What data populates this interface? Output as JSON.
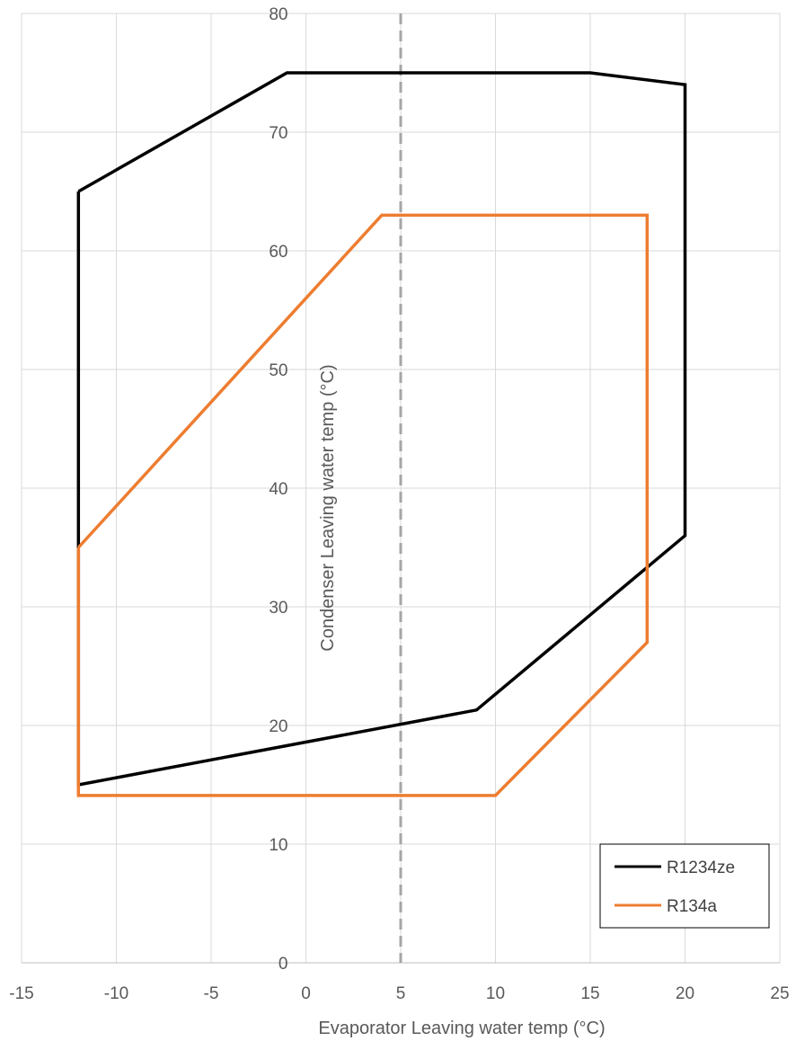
{
  "chart_data": {
    "type": "line",
    "xlabel": "Evaporator Leaving water temp (°C)",
    "ylabel": "Condenser Leaving water temp (°C)",
    "xlim": [
      -15,
      25
    ],
    "ylim": [
      0,
      80
    ],
    "x_ticks": [
      -15,
      -10,
      -5,
      0,
      5,
      10,
      15,
      20,
      25
    ],
    "y_ticks": [
      0,
      10,
      20,
      30,
      40,
      50,
      60,
      70,
      80
    ],
    "grid": true,
    "legend_position": "bottom-right",
    "reference_line": {
      "x": 5,
      "style": "dashed",
      "color": "#a6a6a6"
    },
    "series": [
      {
        "name": "R1234ze",
        "color": "#000000",
        "closed": true,
        "points": [
          [
            -12,
            65
          ],
          [
            -1,
            75
          ],
          [
            15,
            75
          ],
          [
            20,
            74
          ],
          [
            20,
            36
          ],
          [
            9,
            21.3
          ],
          [
            -12,
            15
          ],
          [
            -12,
            65
          ]
        ]
      },
      {
        "name": "R134a",
        "color": "#ed7d31",
        "closed": true,
        "points": [
          [
            -12,
            35
          ],
          [
            4,
            63
          ],
          [
            18,
            63
          ],
          [
            18,
            27
          ],
          [
            10,
            14.1
          ],
          [
            -12,
            14.1
          ],
          [
            -12,
            35
          ]
        ]
      }
    ]
  }
}
